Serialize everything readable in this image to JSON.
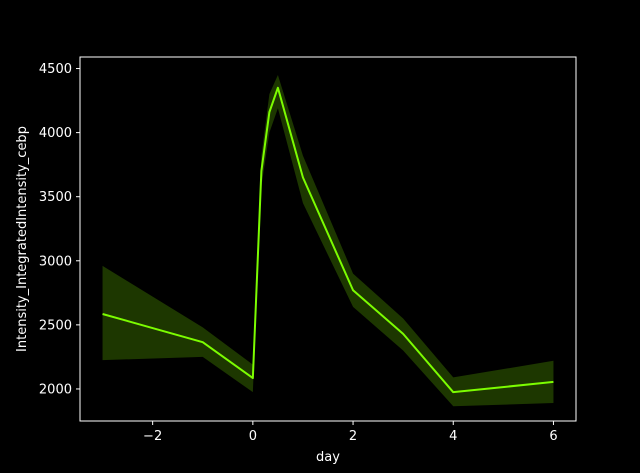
{
  "chart_data": {
    "type": "line",
    "title": "",
    "xlabel": "day",
    "ylabel": "Intensity_IntegratedIntensity_cebp",
    "xlim": [
      -3.45,
      6.45
    ],
    "ylim": [
      1750,
      4590
    ],
    "xticks": [
      -2,
      0,
      2,
      4,
      6
    ],
    "xtick_labels": [
      "−2",
      "0",
      "2",
      "4",
      "6"
    ],
    "yticks": [
      2000,
      2500,
      3000,
      3500,
      4000,
      4500
    ],
    "ytick_labels": [
      "2000",
      "2500",
      "3000",
      "3500",
      "4000",
      "4500"
    ],
    "grid": false,
    "legend": "none",
    "colors": {
      "background": "#000000",
      "line": "#7cfc00",
      "band": "#1f3a00",
      "axes": "#ffffff"
    },
    "series": [
      {
        "x": [
          -3,
          -1,
          0,
          0.17,
          0.33,
          0.5,
          1,
          2,
          3,
          4,
          6
        ],
        "y": [
          2585,
          2365,
          2085,
          3700,
          4160,
          4350,
          3650,
          2770,
          2430,
          1975,
          2055
        ],
        "lower": [
          2225,
          2250,
          1975,
          3580,
          4000,
          4190,
          3450,
          2640,
          2300,
          1865,
          1890
        ],
        "upper": [
          2960,
          2480,
          2190,
          3820,
          4300,
          4450,
          3820,
          2900,
          2550,
          2090,
          2220
        ]
      }
    ]
  }
}
